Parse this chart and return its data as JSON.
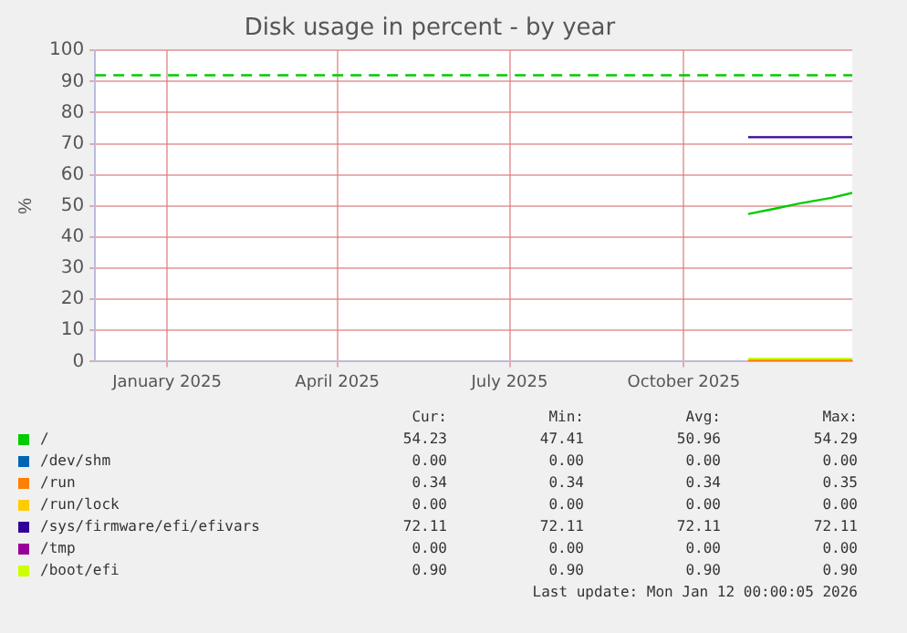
{
  "chart_data": {
    "type": "line",
    "title": "Disk usage in percent - by year",
    "ylabel": "%",
    "x": [
      "2025-11-18",
      "2025-12-01",
      "2025-12-15",
      "2026-01-01",
      "2026-01-12"
    ],
    "xlim": [
      "2024-12-08",
      "2026-01-12"
    ],
    "xticks": [
      {
        "value": "2025-01-15",
        "label": "January 2025"
      },
      {
        "value": "2025-04-15",
        "label": "April 2025"
      },
      {
        "value": "2025-07-15",
        "label": "July 2025"
      },
      {
        "value": "2025-10-15",
        "label": "October 2025"
      }
    ],
    "ylim": [
      0,
      100
    ],
    "yticks": [
      0,
      10,
      20,
      30,
      40,
      50,
      60,
      70,
      80,
      90,
      100
    ],
    "series": [
      {
        "name": "/",
        "color": "#00cc00",
        "values": [
          47.4,
          49,
          50.8,
          52.6,
          54.2
        ]
      },
      {
        "name": "/dev/shm",
        "color": "#0066b3",
        "values": [
          null,
          null,
          null,
          null,
          null
        ]
      },
      {
        "name": "/run",
        "color": "#ff8000",
        "values": [
          0.3,
          0.3,
          0.3,
          0.3,
          0.3
        ]
      },
      {
        "name": "/run/lock",
        "color": "#ffcc00",
        "values": [
          null,
          null,
          null,
          null,
          null
        ]
      },
      {
        "name": "/sys/firmware/efi/efivars",
        "color": "#330099",
        "values": [
          72.1,
          72.1,
          72.1,
          72.1,
          72.1
        ]
      },
      {
        "name": "/tmp",
        "color": "#990099",
        "values": [
          null,
          null,
          null,
          null,
          null
        ]
      },
      {
        "name": "/boot/efi",
        "color": "#ccff00",
        "values": [
          0.9,
          0.9,
          0.9,
          0.9,
          0.9
        ]
      }
    ],
    "ref_lines": [
      {
        "axis": "y",
        "value": 92,
        "color": "#00cc00",
        "line_style": "dashed"
      }
    ],
    "annotations": [
      "Cur:",
      "Min:",
      "Avg:",
      "Max:",
      "54.23",
      "47.41",
      "50.96",
      "54.29",
      "0.00",
      "0.00",
      "0.00",
      "0.00",
      "0.34",
      "0.34",
      "0.34",
      "0.35",
      "0.00",
      "0.00",
      "0.00",
      "0.00",
      "72.11",
      "72.11",
      "72.11",
      "72.11",
      "0.00",
      "0.00",
      "0.00",
      "0.00",
      "0.90",
      "0.90",
      "0.90",
      "0.90",
      "Last update: Mon Jan 12 00:00:05 2026"
    ],
    "grid": true,
    "legend": "bottom",
    "marker": "none",
    "line_style": "solid"
  }
}
